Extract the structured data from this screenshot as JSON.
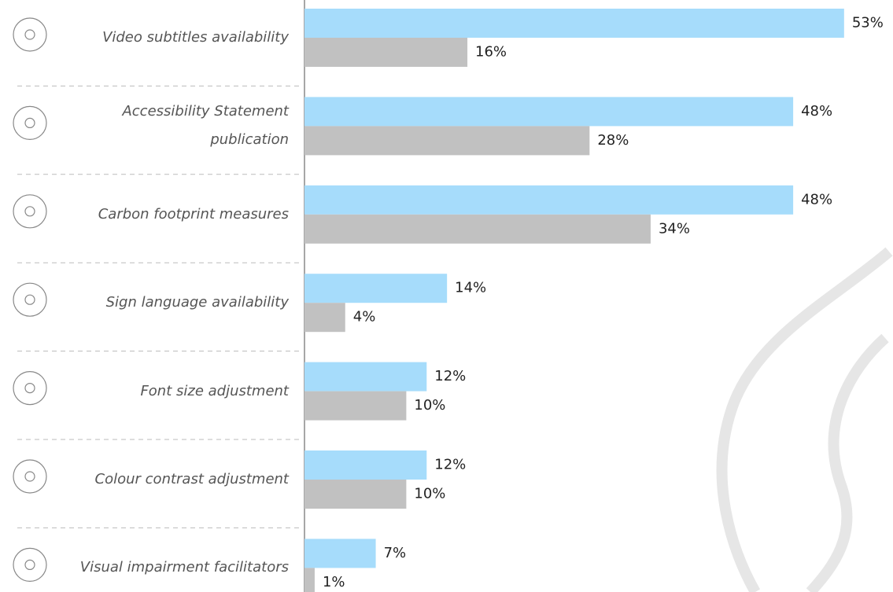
{
  "chart_data": {
    "type": "bar",
    "orientation": "horizontal",
    "categories": [
      "Video subtitles availability",
      "Accessibility Statement publication",
      "Carbon footprint measures",
      "Sign language availability",
      "Font size adjustment",
      "Colour contrast adjustment",
      "Visual impairment facilitators"
    ],
    "series": [
      {
        "color": "#a6dcfb",
        "values": [
          53,
          48,
          48,
          14,
          12,
          12,
          7
        ],
        "value_labels": [
          "53%",
          "48%",
          "48%",
          "14%",
          "12%",
          "12%",
          "7%"
        ]
      },
      {
        "color": "#c1c1c1",
        "values": [
          16,
          28,
          34,
          4,
          10,
          10,
          1
        ],
        "value_labels": [
          "16%",
          "28%",
          "34%",
          "4%",
          "10%",
          "10%",
          "1%"
        ]
      }
    ]
  }
}
